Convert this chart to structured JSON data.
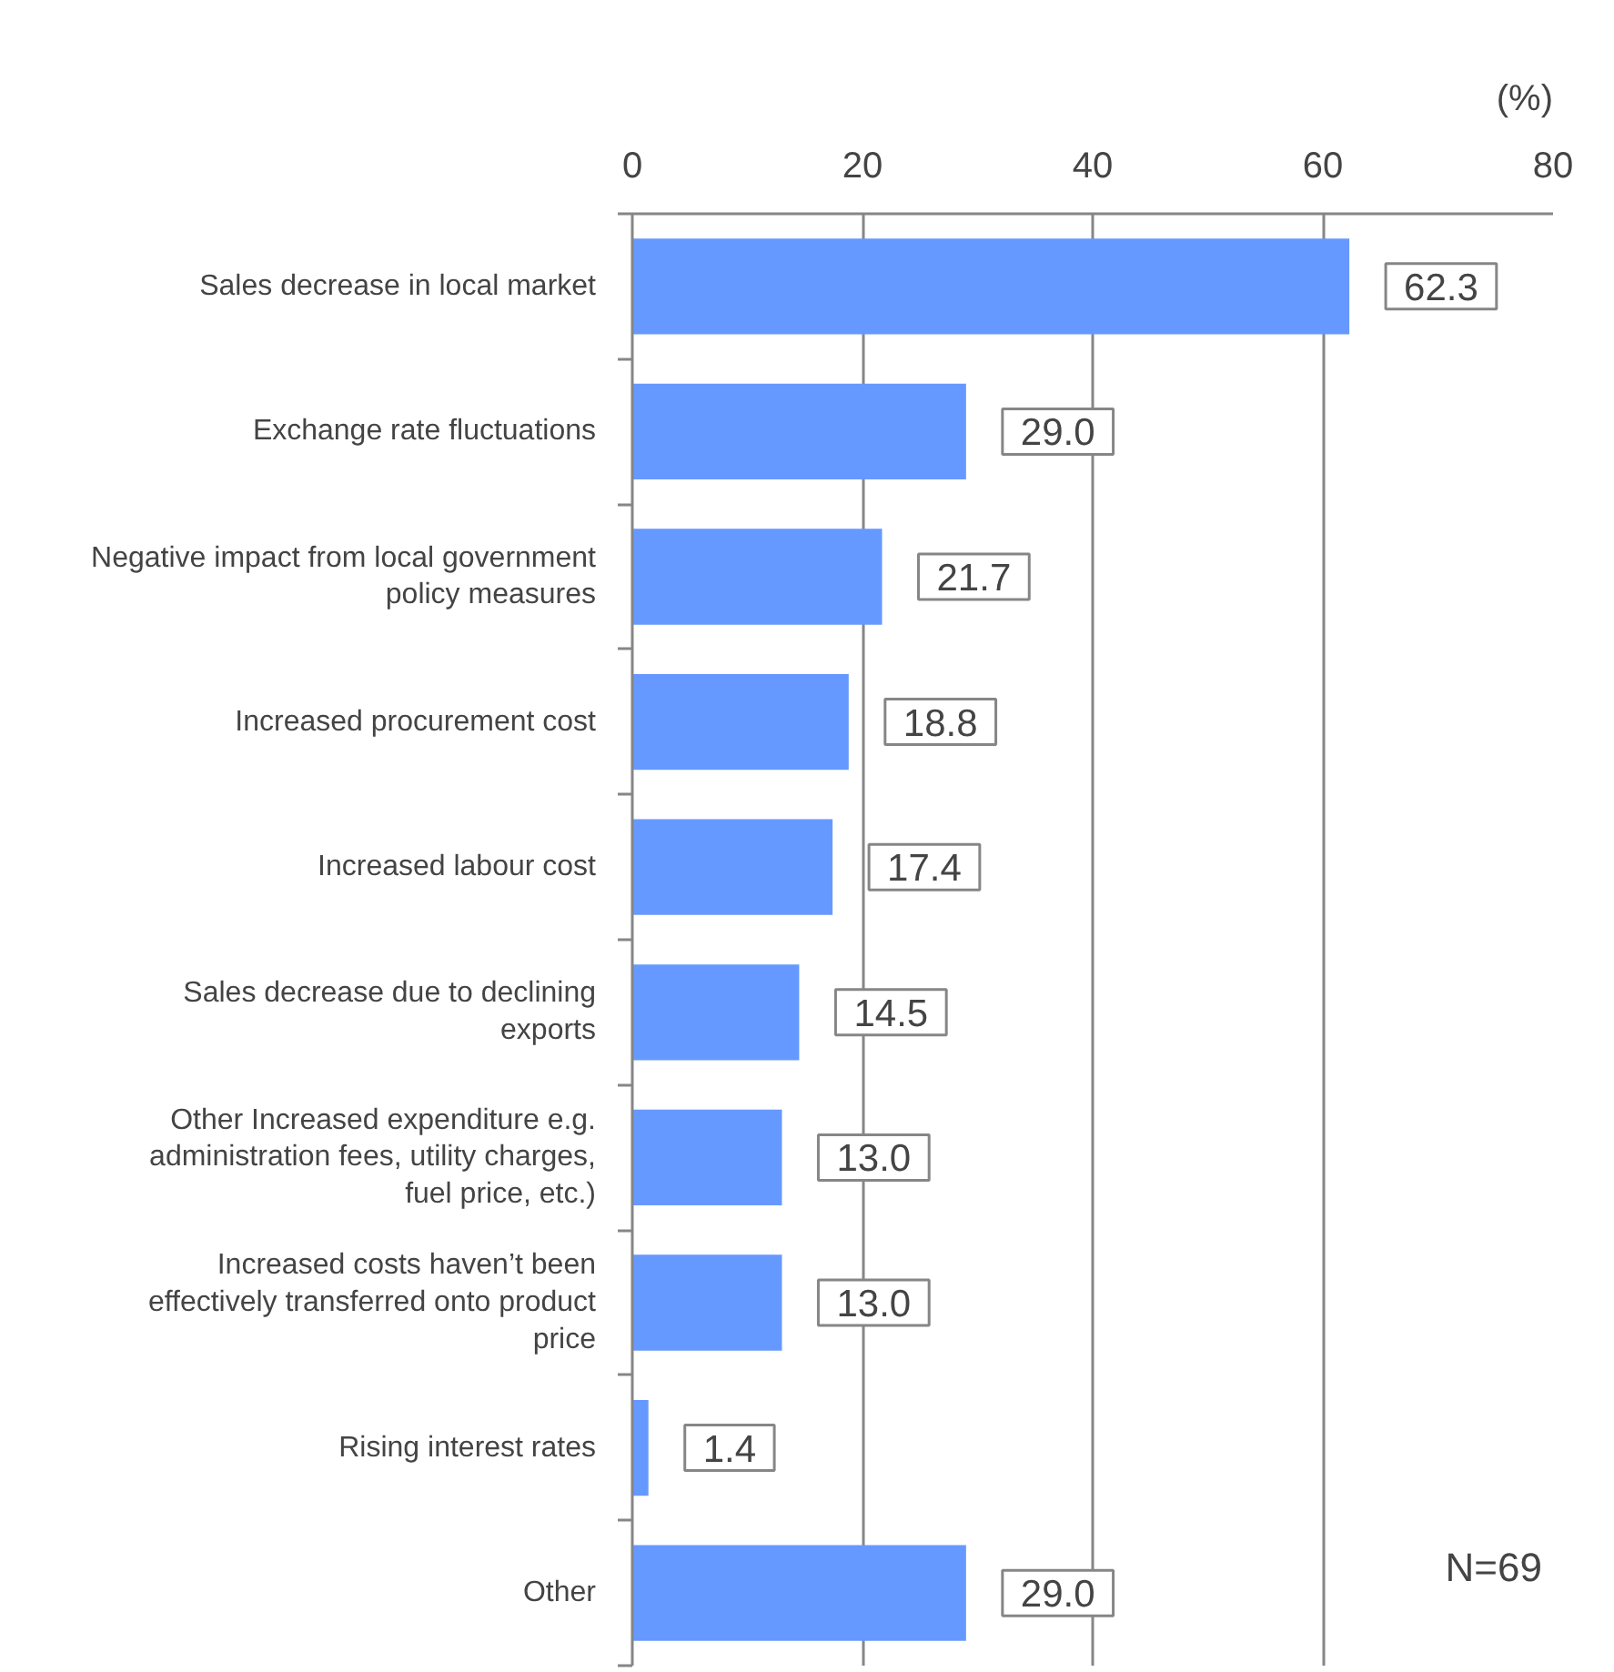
{
  "chart_data": {
    "type": "bar",
    "orientation": "horizontal",
    "xlabel": "(%)",
    "categories": [
      "Sales decrease in local market",
      "Exchange rate fluctuations",
      "Negative impact from local government policy measures",
      "Increased procurement cost",
      "Increased labour cost",
      "Sales decrease due to declining exports",
      "Other Increased expenditure e.g. administration fees, utility charges, fuel price, etc.)",
      "Increased costs haven’t been effectively transferred onto product price",
      "Rising interest rates",
      "Other"
    ],
    "values": [
      62.3,
      29.0,
      21.7,
      18.8,
      17.4,
      14.5,
      13.0,
      13.0,
      1.4,
      29.0
    ],
    "value_labels": [
      "62.3",
      "29.0",
      "21.7",
      "18.8",
      "17.4",
      "14.5",
      "13.0",
      "13.0",
      "1.4",
      "29.0"
    ],
    "color": "#6699ff",
    "xlim": [
      0,
      80
    ],
    "xticks": [
      0,
      20,
      40,
      60,
      80
    ],
    "grid": "x",
    "annotations": [
      "N=69"
    ]
  }
}
